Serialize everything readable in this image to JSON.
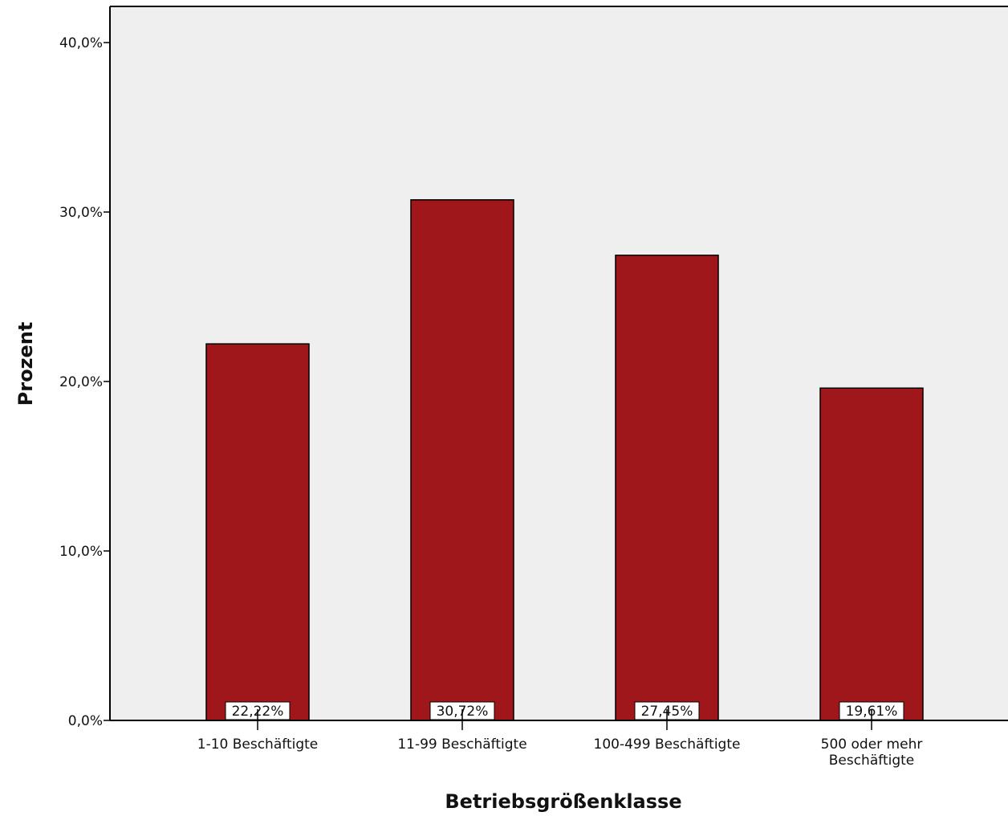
{
  "chart_data": {
    "type": "bar",
    "categories": [
      [
        "1-10 Beschäftigte"
      ],
      [
        "11-99 Beschäftigte"
      ],
      [
        "100-499 Beschäftigte"
      ],
      [
        "500 oder mehr",
        "Beschäftigte"
      ]
    ],
    "values": [
      22.22,
      30.72,
      27.45,
      19.61
    ],
    "data_labels": [
      "22,22%",
      "30,72%",
      "27,45%",
      "19,61%"
    ],
    "xlabel": "Betriebsgrößenklasse",
    "ylabel": "Prozent",
    "ylim": [
      0,
      40
    ],
    "yticks": [
      0,
      10,
      20,
      30,
      40
    ],
    "ytick_labels": [
      "0,0%",
      "10,0%",
      "20,0%",
      "30,0%",
      "40,0%"
    ],
    "grid": false,
    "colors": {
      "bar": "#a0171b",
      "plot_background": "#efefef",
      "axis": "#000000"
    }
  }
}
